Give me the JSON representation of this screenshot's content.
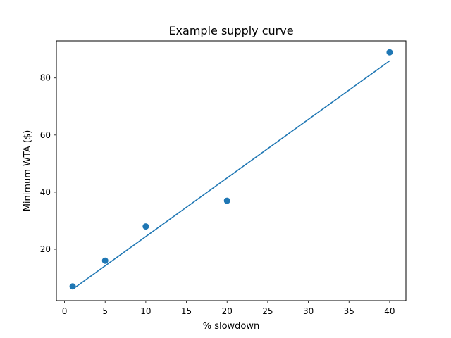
{
  "chart_data": {
    "type": "scatter",
    "title": "Example supply curve",
    "xlabel": "% slowdown",
    "ylabel": "Minimum WTA ($)",
    "xlim": [
      -1,
      42
    ],
    "ylim": [
      2,
      93
    ],
    "x_ticks": [
      0,
      5,
      10,
      15,
      20,
      25,
      30,
      35,
      40
    ],
    "y_ticks": [
      20,
      40,
      60,
      80
    ],
    "grid": false,
    "colors": {
      "series": "#1f77b4",
      "axes": "#000000",
      "background": "#ffffff"
    },
    "series": [
      {
        "kind": "scatter",
        "x": [
          1,
          5,
          10,
          20,
          40
        ],
        "y": [
          7,
          16,
          28,
          37,
          89
        ]
      },
      {
        "kind": "line",
        "x": [
          1,
          40
        ],
        "y": [
          6,
          86
        ]
      }
    ]
  }
}
